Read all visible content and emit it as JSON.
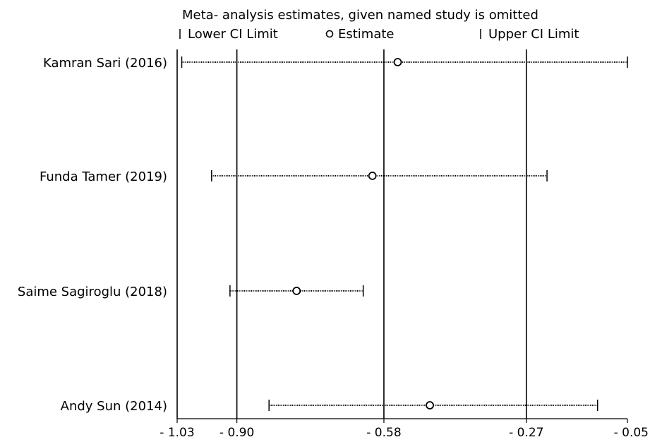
{
  "chart_data": {
    "type": "forest",
    "title": "Meta- analysis estimates, given named study is omitted",
    "legend": {
      "lower": "Lower CI Limit",
      "estimate": "Estimate",
      "upper": "Upper CI Limit"
    },
    "xlim": [
      -1.03,
      -0.05
    ],
    "xticks": [
      -1.03,
      -0.9,
      -0.58,
      -0.27,
      -0.05
    ],
    "xtick_labels": [
      "- 1.03",
      "- 0.90",
      "- 0.58",
      "- 0.27",
      "- 0.05"
    ],
    "reference_lines": [
      -1.03,
      -0.9,
      -0.58,
      -0.27
    ],
    "studies": [
      {
        "name": "Kamran Sari (2016)",
        "lower": -1.02,
        "estimate": -0.55,
        "upper": -0.05
      },
      {
        "name": "Funda Tamer (2019)",
        "lower": -0.955,
        "estimate": -0.605,
        "upper": -0.225
      },
      {
        "name": "Saime Sagiroglu (2018)",
        "lower": -0.915,
        "estimate": -0.77,
        "upper": -0.625
      },
      {
        "name": "Andy Sun (2014)",
        "lower": -0.83,
        "estimate": -0.48,
        "upper": -0.115
      }
    ]
  }
}
